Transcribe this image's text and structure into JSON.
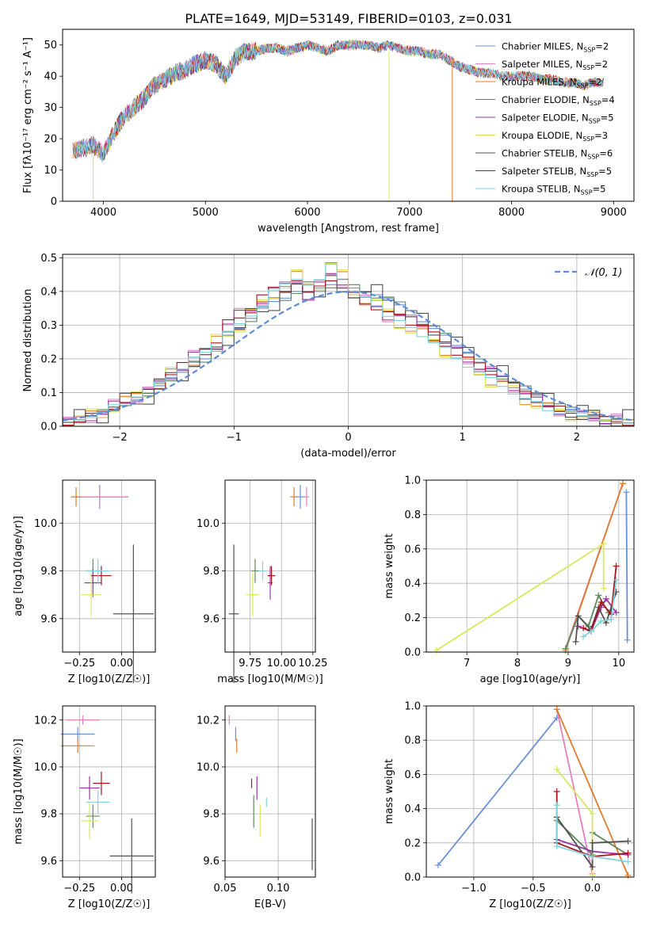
{
  "figure_title": "PLATE=1649, MJD=53149, FIBERID=0103, z=0.031",
  "colors": {
    "Chabrier MILES": "#6a8fd8",
    "Salpeter MILES": "#e57fbf",
    "Kroupa MILES": "#e07b2a",
    "Chabrier ELODIE": "#5e8a5e",
    "Salpeter ELODIE": "#9a35a8",
    "Kroupa ELODIE": "#d7e85a",
    "Chabrier STELIB": "#505050",
    "Salpeter STELIB": "#a8141c",
    "Kroupa STELIB": "#7fd3dc",
    "gauss": "#5b8bd9"
  },
  "chart_data": [
    {
      "id": "spectrum",
      "type": "line",
      "xlabel": "wavelength [Angstrom, rest frame]",
      "ylabel": "Flux [fλ10⁻¹⁷ erg cm⁻² s⁻¹ A⁻¹]",
      "xlim": [
        3600,
        9200
      ],
      "ylim": [
        0,
        55
      ],
      "xticks": [
        4000,
        5000,
        6000,
        7000,
        8000,
        9000
      ],
      "yticks": [
        0,
        10,
        20,
        30,
        40,
        50
      ],
      "legend_position": "right",
      "legend": [
        "Chabrier MILES, N_SSP=2",
        "Salpeter MILES, N_SSP=2",
        "Kroupa MILES, N_SSP=2",
        "Chabrier ELODIE, N_SSP=4",
        "Salpeter ELODIE, N_SSP=5",
        "Kroupa ELODIE, N_SSP=3",
        "Chabrier STELIB, N_SSP=6",
        "Salpeter STELIB, N_SSP=5",
        "Kroupa STELIB, N_SSP=5"
      ],
      "x": [
        3700,
        3800,
        3900,
        4000,
        4100,
        4200,
        4300,
        4400,
        4500,
        4600,
        4700,
        4800,
        4900,
        5000,
        5100,
        5200,
        5300,
        5400,
        5500,
        5600,
        5700,
        5800,
        5900,
        6000,
        6100,
        6200,
        6300,
        6400,
        6500,
        6600,
        6700,
        6800,
        6900,
        7000,
        7100,
        7200,
        7300,
        7400,
        7500,
        7600,
        7700,
        7800,
        7900,
        8000,
        8100,
        8200,
        8300,
        8400,
        8500,
        8600,
        8700,
        8800,
        8900
      ],
      "y": [
        16,
        17,
        18,
        15,
        22,
        27,
        30,
        33,
        37,
        39,
        41,
        42,
        44,
        45,
        44,
        40,
        46,
        48,
        48,
        49,
        49,
        48,
        49,
        50,
        49,
        48,
        50,
        50,
        50,
        50,
        49,
        50,
        49,
        48,
        48,
        47,
        47,
        45,
        43,
        42,
        41,
        41,
        40,
        40,
        40,
        40,
        39,
        39,
        38,
        38,
        37,
        38,
        38
      ]
    },
    {
      "id": "residuals",
      "type": "bar",
      "xlabel": "(data-model)/error",
      "ylabel": "Normed distribution",
      "xlim": [
        -2.5,
        2.5
      ],
      "ylim": [
        0,
        0.51
      ],
      "xticks": [
        -2,
        -1,
        0,
        1,
        2
      ],
      "yticks": [
        0.0,
        0.1,
        0.2,
        0.3,
        0.4,
        0.5
      ],
      "grid": true,
      "legend_position": "top-right",
      "legend": [
        "𝒩(0, 1)"
      ],
      "bin_width": 0.1,
      "bins_start": -2.5,
      "series_values": [
        [
          0.02,
          0.02,
          0.03,
          0.04,
          0.05,
          0.07,
          0.08,
          0.09,
          0.12,
          0.14,
          0.16,
          0.19,
          0.2,
          0.23,
          0.27,
          0.29,
          0.32,
          0.35,
          0.37,
          0.38,
          0.4,
          0.42,
          0.4,
          0.42,
          0.4,
          0.41,
          0.4,
          0.39,
          0.38,
          0.36,
          0.33,
          0.31,
          0.29,
          0.27,
          0.24,
          0.22,
          0.19,
          0.17,
          0.15,
          0.13,
          0.11,
          0.09,
          0.07,
          0.06,
          0.05,
          0.04,
          0.03,
          0.02,
          0.02,
          0.02
        ],
        [
          0.01,
          0.02,
          0.03,
          0.04,
          0.06,
          0.07,
          0.09,
          0.11,
          0.12,
          0.15,
          0.18,
          0.21,
          0.22,
          0.24,
          0.31,
          0.33,
          0.34,
          0.38,
          0.41,
          0.41,
          0.43,
          0.39,
          0.42,
          0.44,
          0.43,
          0.39,
          0.37,
          0.35,
          0.33,
          0.33,
          0.31,
          0.3,
          0.27,
          0.24,
          0.22,
          0.2,
          0.18,
          0.16,
          0.14,
          0.12,
          0.1,
          0.08,
          0.06,
          0.05,
          0.04,
          0.03,
          0.03,
          0.02,
          0.02,
          0.01
        ],
        [
          0.02,
          0.02,
          0.03,
          0.04,
          0.06,
          0.07,
          0.09,
          0.11,
          0.13,
          0.15,
          0.17,
          0.2,
          0.22,
          0.25,
          0.28,
          0.3,
          0.33,
          0.36,
          0.4,
          0.42,
          0.44,
          0.42,
          0.43,
          0.48,
          0.44,
          0.4,
          0.38,
          0.36,
          0.33,
          0.31,
          0.29,
          0.27,
          0.25,
          0.23,
          0.2,
          0.18,
          0.16,
          0.14,
          0.12,
          0.1,
          0.08,
          0.07,
          0.05,
          0.04,
          0.04,
          0.03,
          0.02,
          0.02,
          0.02,
          0.01
        ]
      ]
    },
    {
      "id": "age_vs_Z",
      "type": "scatter",
      "xlabel": "Z [log10(Z/Z☉)]",
      "ylabel": "age  [log10(age/yr)]",
      "xlim": [
        -0.35,
        0.2
      ],
      "ylim": [
        9.46,
        10.18
      ],
      "xticks": [
        -0.25,
        0.0
      ],
      "yticks": [
        9.6,
        9.8,
        10.0
      ],
      "grid": true
    },
    {
      "id": "age_vs_mass",
      "type": "scatter",
      "xlabel": "mass [log10(M/M☉)]",
      "ylabel": "",
      "xlim": [
        9.55,
        10.27
      ],
      "ylim": [
        9.46,
        10.18
      ],
      "xticks": [
        9.75,
        10.0,
        10.25
      ],
      "yticks": [
        9.6,
        9.8,
        10.0
      ],
      "grid": true
    },
    {
      "id": "massweight_vs_age",
      "type": "line",
      "xlabel": "age  [log10(age/yr)]",
      "ylabel": "mass weight",
      "xlim": [
        6.2,
        10.3
      ],
      "ylim": [
        0,
        1
      ],
      "xticks": [
        7,
        8,
        9,
        10
      ],
      "yticks": [
        0.0,
        0.2,
        0.4,
        0.6,
        0.8,
        1.0
      ],
      "grid": true
    },
    {
      "id": "mass_vs_Z",
      "type": "scatter",
      "xlabel": "Z [log10(Z/Z☉)]",
      "ylabel": "mass [log10(M/M☉)]",
      "xlim": [
        -0.35,
        0.2
      ],
      "ylim": [
        9.53,
        10.26
      ],
      "xticks": [
        -0.25,
        0.0
      ],
      "yticks": [
        9.6,
        9.8,
        10.0,
        10.2
      ],
      "grid": true
    },
    {
      "id": "mass_vs_ebv",
      "type": "scatter",
      "xlabel": "E(B-V)",
      "ylabel": "",
      "xlim": [
        0.05,
        0.135
      ],
      "ylim": [
        9.53,
        10.26
      ],
      "xticks": [
        0.05,
        0.1
      ],
      "yticks": [
        9.6,
        9.8,
        10.0,
        10.2
      ],
      "grid": true
    },
    {
      "id": "massweight_vs_Z",
      "type": "line",
      "xlabel": "Z [log10(Z/Z☉)]",
      "ylabel": "mass weight",
      "xlim": [
        -1.4,
        0.35
      ],
      "ylim": [
        0,
        1
      ],
      "xticks": [
        -1.0,
        -0.5,
        0.0
      ],
      "yticks": [
        0.0,
        0.2,
        0.4,
        0.6,
        0.8,
        1.0
      ],
      "grid": true
    }
  ],
  "points": {
    "age_vs_Z": [
      {
        "s": "Chabrier MILES",
        "x": -0.13,
        "y": 10.11,
        "ex": 0.17,
        "ey": 0.05
      },
      {
        "s": "Salpeter MILES",
        "x": -0.13,
        "y": 10.11,
        "ex": 0.17,
        "ey": 0.04
      },
      {
        "s": "Kroupa MILES",
        "x": -0.27,
        "y": 10.11,
        "ex": 0.03,
        "ey": 0.04
      },
      {
        "s": "Chabrier ELODIE",
        "x": -0.17,
        "y": 9.8,
        "ex": 0.04,
        "ey": 0.05
      },
      {
        "s": "Salpeter ELODIE",
        "x": -0.17,
        "y": 9.75,
        "ex": 0.05,
        "ey": 0.06
      },
      {
        "s": "Kroupa ELODIE",
        "x": -0.18,
        "y": 9.7,
        "ex": 0.06,
        "ey": 0.09
      },
      {
        "s": "Chabrier STELIB",
        "x": 0.07,
        "y": 9.62,
        "ex": 0.12,
        "ey": 0.29
      },
      {
        "s": "Salpeter STELIB",
        "x": -0.12,
        "y": 9.78,
        "ex": 0.06,
        "ey": 0.04
      },
      {
        "s": "Kroupa STELIB",
        "x": -0.14,
        "y": 9.8,
        "ex": 0.07,
        "ey": 0.05
      }
    ],
    "age_vs_mass": [
      {
        "s": "Chabrier MILES",
        "x": 10.15,
        "y": 10.11,
        "ex": 0.04,
        "ey": 0.05
      },
      {
        "s": "Salpeter MILES",
        "x": 10.2,
        "y": 10.11,
        "ex": 0.02,
        "ey": 0.04
      },
      {
        "s": "Kroupa MILES",
        "x": 10.1,
        "y": 10.11,
        "ex": 0.03,
        "ey": 0.04
      },
      {
        "s": "Chabrier ELODIE",
        "x": 9.79,
        "y": 9.8,
        "ex": 0.03,
        "ey": 0.05
      },
      {
        "s": "Salpeter ELODIE",
        "x": 9.91,
        "y": 9.75,
        "ex": 0.02,
        "ey": 0.07
      },
      {
        "s": "Kroupa ELODIE",
        "x": 9.77,
        "y": 9.7,
        "ex": 0.05,
        "ey": 0.09
      },
      {
        "s": "Chabrier STELIB",
        "x": 9.62,
        "y": 9.62,
        "ex": 0.04,
        "ey": 0.29
      },
      {
        "s": "Salpeter STELIB",
        "x": 9.92,
        "y": 9.78,
        "ex": 0.03,
        "ey": 0.04
      },
      {
        "s": "Kroupa STELIB",
        "x": 9.85,
        "y": 9.8,
        "ex": 0.03,
        "ey": 0.04
      }
    ],
    "mass_vs_Z": [
      {
        "s": "Chabrier MILES",
        "x": -0.26,
        "y": 10.14,
        "ex": 0.1,
        "ey": 0.03
      },
      {
        "s": "Salpeter MILES",
        "x": -0.23,
        "y": 10.2,
        "ex": 0.1,
        "ey": 0.02
      },
      {
        "s": "Kroupa MILES",
        "x": -0.26,
        "y": 10.09,
        "ex": 0.1,
        "ey": 0.03
      },
      {
        "s": "Chabrier ELODIE",
        "x": -0.17,
        "y": 9.79,
        "ex": 0.04,
        "ey": 0.05
      },
      {
        "s": "Salpeter ELODIE",
        "x": -0.19,
        "y": 9.91,
        "ex": 0.06,
        "ey": 0.05
      },
      {
        "s": "Kroupa ELODIE",
        "x": -0.19,
        "y": 9.77,
        "ex": 0.05,
        "ey": 0.08
      },
      {
        "s": "Chabrier STELIB",
        "x": 0.06,
        "y": 9.62,
        "ex": 0.13,
        "ey": 0.16
      },
      {
        "s": "Salpeter STELIB",
        "x": -0.12,
        "y": 9.93,
        "ex": 0.05,
        "ey": 0.05
      },
      {
        "s": "Kroupa STELIB",
        "x": -0.14,
        "y": 9.85,
        "ex": 0.07,
        "ey": 0.05
      }
    ],
    "mass_vs_ebv": [
      {
        "s": "Chabrier MILES",
        "x": 0.06,
        "y": 10.14,
        "ex": 0.0,
        "ey": 0.03
      },
      {
        "s": "Salpeter MILES",
        "x": 0.054,
        "y": 10.2,
        "ex": 0.0,
        "ey": 0.02
      },
      {
        "s": "Kroupa MILES",
        "x": 0.061,
        "y": 10.09,
        "ex": 0.0,
        "ey": 0.03
      },
      {
        "s": "Chabrier ELODIE",
        "x": 0.077,
        "y": 9.81,
        "ex": 0.0,
        "ey": 0.07
      },
      {
        "s": "Salpeter ELODIE",
        "x": 0.08,
        "y": 9.91,
        "ex": 0.0,
        "ey": 0.05
      },
      {
        "s": "Kroupa ELODIE",
        "x": 0.083,
        "y": 9.77,
        "ex": 0.0,
        "ey": 0.07
      },
      {
        "s": "Chabrier STELIB",
        "x": 0.132,
        "y": 9.67,
        "ex": 0.0,
        "ey": 0.11
      },
      {
        "s": "Salpeter STELIB",
        "x": 0.075,
        "y": 9.93,
        "ex": 0.0,
        "ey": 0.02
      },
      {
        "s": "Kroupa STELIB",
        "x": 0.089,
        "y": 9.85,
        "ex": 0.0,
        "ey": 0.02
      }
    ],
    "massweight_vs_age": [
      {
        "s": "Chabrier MILES",
        "pts": [
          [
            10.15,
            0.93
          ],
          [
            10.17,
            0.07
          ]
        ]
      },
      {
        "s": "Salpeter MILES",
        "pts": [
          [
            8.95,
            0.02
          ],
          [
            10.08,
            0.98
          ]
        ]
      },
      {
        "s": "Kroupa MILES",
        "pts": [
          [
            8.95,
            0.01
          ],
          [
            10.08,
            0.98
          ]
        ]
      },
      {
        "s": "Chabrier ELODIE",
        "pts": [
          [
            8.95,
            0.02
          ],
          [
            9.2,
            0.21
          ],
          [
            9.4,
            0.15
          ],
          [
            9.6,
            0.33
          ],
          [
            9.8,
            0.23
          ]
        ]
      },
      {
        "s": "Salpeter ELODIE",
        "pts": [
          [
            9.2,
            0.15
          ],
          [
            9.45,
            0.12
          ],
          [
            9.65,
            0.26
          ],
          [
            9.75,
            0.31
          ],
          [
            9.95,
            0.23
          ]
        ]
      },
      {
        "s": "Kroupa ELODIE",
        "pts": [
          [
            6.4,
            0.01
          ],
          [
            9.7,
            0.63
          ],
          [
            9.7,
            0.37
          ]
        ]
      },
      {
        "s": "Chabrier STELIB",
        "pts": [
          [
            9.15,
            0.06
          ],
          [
            9.2,
            0.21
          ],
          [
            9.45,
            0.13
          ],
          [
            9.6,
            0.26
          ],
          [
            9.75,
            0.17
          ],
          [
            9.95,
            0.35
          ]
        ]
      },
      {
        "s": "Salpeter STELIB",
        "pts": [
          [
            9.3,
            0.14
          ],
          [
            9.45,
            0.12
          ],
          [
            9.65,
            0.29
          ],
          [
            9.85,
            0.22
          ],
          [
            9.95,
            0.5
          ]
        ]
      },
      {
        "s": "Kroupa STELIB",
        "pts": [
          [
            9.3,
            0.09
          ],
          [
            9.45,
            0.12
          ],
          [
            9.65,
            0.18
          ],
          [
            9.85,
            0.19
          ],
          [
            9.95,
            0.42
          ]
        ]
      }
    ],
    "massweight_vs_Z": [
      {
        "s": "Chabrier MILES",
        "pts": [
          [
            -1.3,
            0.07
          ],
          [
            -0.3,
            0.93
          ]
        ]
      },
      {
        "s": "Salpeter MILES",
        "pts": [
          [
            -0.3,
            0.98
          ],
          [
            0.0,
            0.02
          ]
        ]
      },
      {
        "s": "Kroupa MILES",
        "pts": [
          [
            -0.3,
            0.98
          ],
          [
            0.3,
            0.01
          ]
        ]
      },
      {
        "s": "Chabrier ELODIE",
        "pts": [
          [
            -0.3,
            0.33
          ],
          [
            0.0,
            0.13
          ],
          [
            0.0,
            0.26
          ],
          [
            0.3,
            0.13
          ]
        ]
      },
      {
        "s": "Salpeter ELODIE",
        "pts": [
          [
            -0.3,
            0.22
          ],
          [
            0.0,
            0.15
          ],
          [
            0.3,
            0.13
          ]
        ]
      },
      {
        "s": "Kroupa ELODIE",
        "pts": [
          [
            -0.3,
            0.63
          ],
          [
            0.0,
            0.37
          ],
          [
            0.0,
            0.01
          ]
        ]
      },
      {
        "s": "Chabrier STELIB",
        "pts": [
          [
            -0.3,
            0.35
          ],
          [
            0.0,
            0.06
          ],
          [
            0.0,
            0.2
          ],
          [
            0.3,
            0.21
          ]
        ]
      },
      {
        "s": "Salpeter STELIB",
        "pts": [
          [
            -0.3,
            0.5
          ],
          [
            -0.3,
            0.2
          ],
          [
            0.0,
            0.12
          ],
          [
            0.3,
            0.14
          ]
        ]
      },
      {
        "s": "Kroupa STELIB",
        "pts": [
          [
            -0.3,
            0.42
          ],
          [
            -0.3,
            0.18
          ],
          [
            0.0,
            0.12
          ],
          [
            0.3,
            0.09
          ]
        ]
      }
    ]
  }
}
